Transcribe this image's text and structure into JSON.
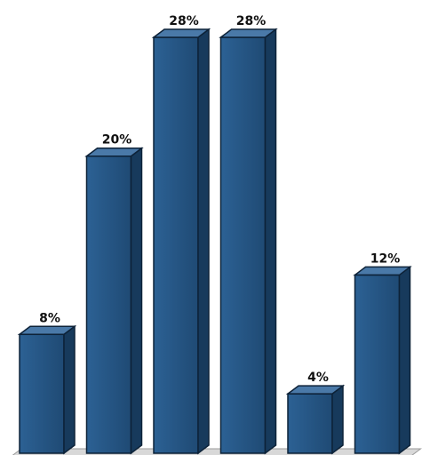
{
  "chart_data": {
    "type": "bar",
    "style": "3d-column",
    "title": "",
    "xlabel": "",
    "ylabel": "",
    "categories": [
      "",
      "",
      "",
      "",
      "",
      ""
    ],
    "values": [
      8,
      20,
      28,
      28,
      4,
      12
    ],
    "data_labels": [
      "8%",
      "20%",
      "28%",
      "28%",
      "4%",
      "12%"
    ],
    "unit": "%",
    "ylim": [
      0,
      28
    ],
    "grid": false,
    "legend": "none",
    "colors": {
      "bar_front": "#23507c",
      "bar_front_light": "#2c6194",
      "bar_top": "#4a79a8",
      "bar_side": "#173a5c",
      "bar_outline": "#0d2238",
      "floor": "#d8d8d8",
      "floor_edge": "#9a9a9a",
      "label": "#111111"
    }
  }
}
